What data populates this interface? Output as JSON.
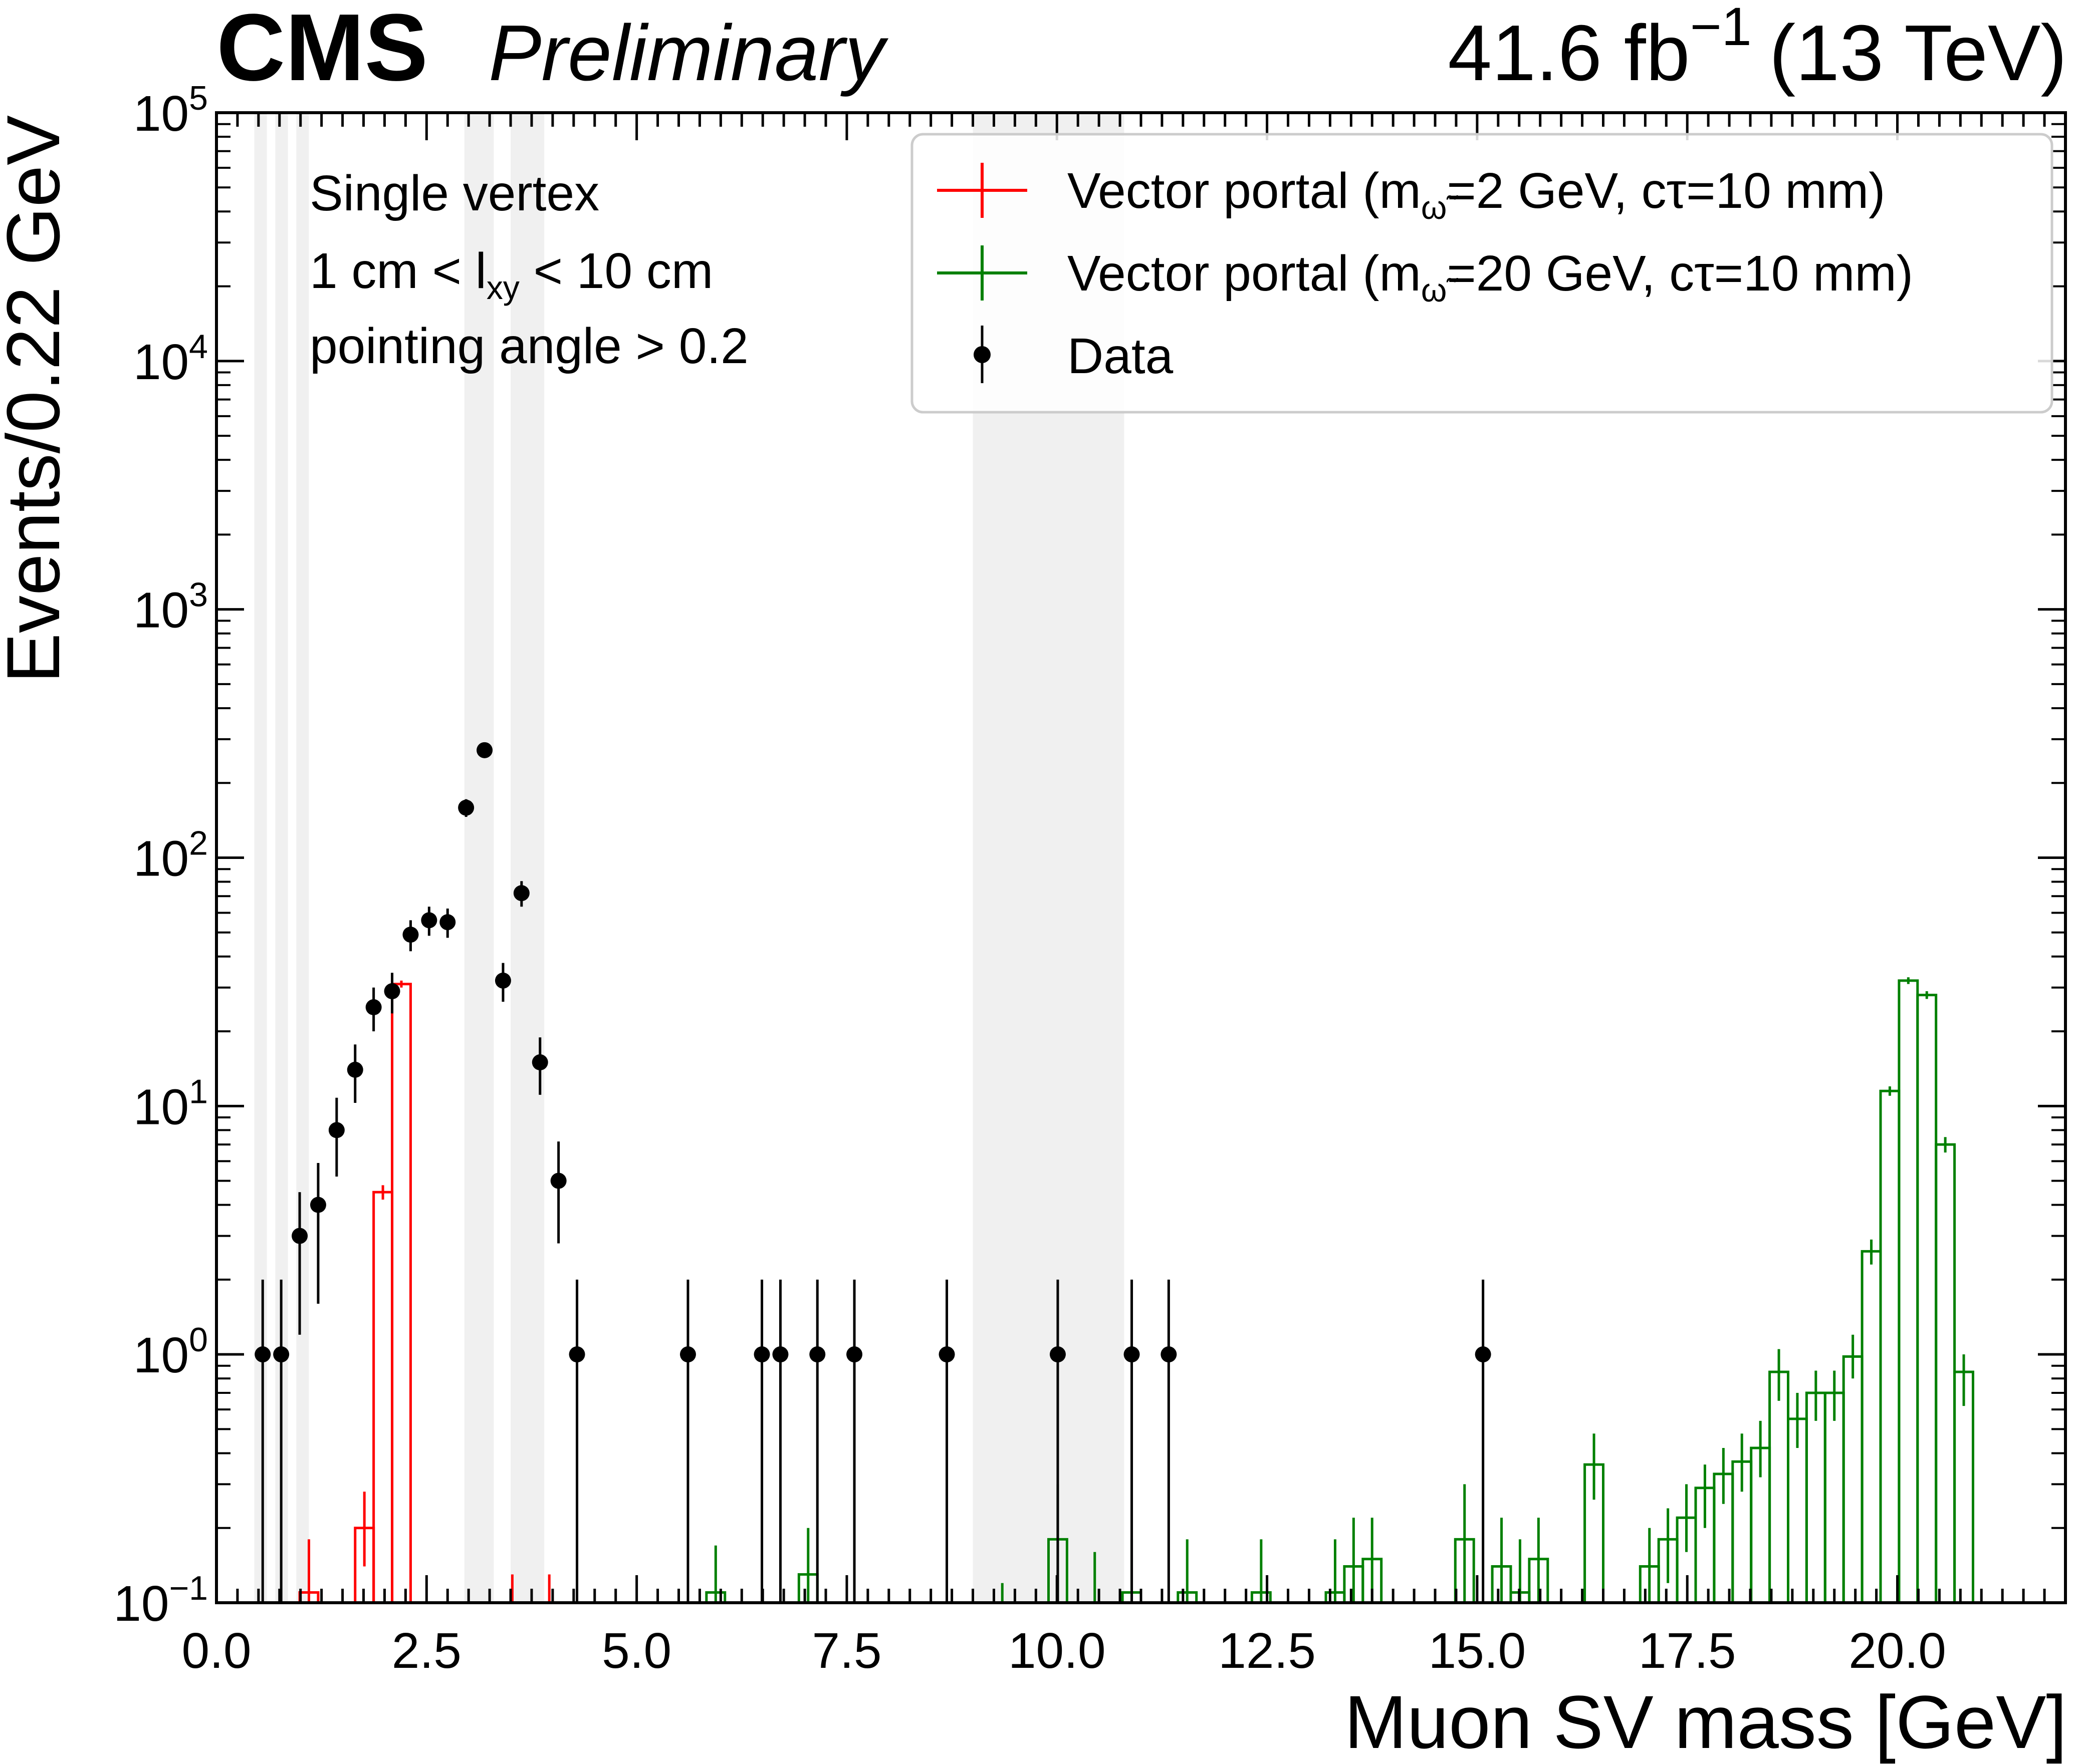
{
  "header": {
    "experiment": "CMS",
    "status": "Preliminary",
    "lumi_value": "41.6 fb",
    "lumi_exp": "−1",
    "energy": "(13 TeV)"
  },
  "chart_data": {
    "type": "histogram",
    "xlabel": "Muon SV mass [GeV]",
    "ylabel": "Events/0.22 GeV",
    "xlim": [
      0,
      22
    ],
    "ylim": [
      0.1,
      100000
    ],
    "yscale": "log",
    "x_ticks": [
      "0.0",
      "2.5",
      "5.0",
      "7.5",
      "10.0",
      "12.5",
      "15.0",
      "17.5",
      "20.0"
    ],
    "y_ticks": [
      {
        "base": "10",
        "exp": "−1",
        "value": 0.1
      },
      {
        "base": "10",
        "exp": "0",
        "value": 1
      },
      {
        "base": "10",
        "exp": "1",
        "value": 10
      },
      {
        "base": "10",
        "exp": "2",
        "value": 100
      },
      {
        "base": "10",
        "exp": "3",
        "value": 1000
      },
      {
        "base": "10",
        "exp": "4",
        "value": 10000
      },
      {
        "base": "10",
        "exp": "5",
        "value": 100000
      }
    ],
    "annotations": {
      "line1": "Single vertex",
      "line2_pre": "1 cm < l",
      "line2_sub": "xy",
      "line2_post": " < 10 cm",
      "line3": "pointing angle > 0.2"
    },
    "vetoed_mass_regions": [
      [
        0.45,
        0.6
      ],
      [
        0.7,
        0.85
      ],
      [
        0.95,
        1.1
      ],
      [
        2.95,
        3.3
      ],
      [
        3.5,
        3.9
      ],
      [
        9.0,
        10.8
      ]
    ],
    "legend": {
      "position": "top-right",
      "entries": [
        {
          "prefix": "Vector portal (m",
          "sub": "ω̃",
          "suffix": "=2 GeV, cτ=10 mm)",
          "color": "#ff0000"
        },
        {
          "prefix": "Vector portal (m",
          "sub": "ω̃",
          "suffix": "=20 GeV, cτ=10 mm)",
          "color": "#008000"
        },
        {
          "label": "Data",
          "color": "#000000"
        }
      ]
    },
    "series": [
      {
        "name": "Vector portal (m=2 GeV, ctau=10 mm)",
        "color": "#ff0000",
        "bin_width": 0.22,
        "bins": [
          {
            "x": 1.1,
            "y": 0.11,
            "err": [
              0.1,
              0.18
            ]
          },
          {
            "x": 1.76,
            "y": 0.2,
            "err": [
              0.14,
              0.28
            ]
          },
          {
            "x": 1.98,
            "y": 4.5,
            "err": [
              4.2,
              4.8
            ]
          },
          {
            "x": 2.2,
            "y": 31,
            "err": [
              30,
              32
            ]
          },
          {
            "x": 3.52,
            "y": 0.1,
            "err": [
              0.1,
              0.13
            ]
          },
          {
            "x": 3.96,
            "y": 0.1,
            "err": [
              0.1,
              0.13
            ]
          }
        ]
      },
      {
        "name": "Vector portal (m=20 GeV, ctau=10 mm)",
        "color": "#008000",
        "bin_width": 0.22,
        "bins": [
          {
            "x": 5.94,
            "y": 0.11,
            "err": [
              0.1,
              0.17
            ]
          },
          {
            "x": 7.04,
            "y": 0.13,
            "err": [
              0.1,
              0.2
            ]
          },
          {
            "x": 9.35,
            "y": 0.1,
            "err": [
              0.1,
              0.12
            ]
          },
          {
            "x": 10.01,
            "y": 0.18,
            "err": [
              0.1,
              0.3
            ]
          },
          {
            "x": 10.45,
            "y": 0.1,
            "err": [
              0.1,
              0.16
            ]
          },
          {
            "x": 10.89,
            "y": 0.11,
            "err": [
              0.1,
              0.18
            ]
          },
          {
            "x": 11.55,
            "y": 0.11,
            "err": [
              0.1,
              0.18
            ]
          },
          {
            "x": 12.43,
            "y": 0.11,
            "err": [
              0.1,
              0.18
            ]
          },
          {
            "x": 13.31,
            "y": 0.11,
            "err": [
              0.1,
              0.18
            ]
          },
          {
            "x": 13.53,
            "y": 0.14,
            "err": [
              0.1,
              0.22
            ]
          },
          {
            "x": 13.75,
            "y": 0.15,
            "err": [
              0.1,
              0.22
            ]
          },
          {
            "x": 14.85,
            "y": 0.18,
            "err": [
              0.1,
              0.3
            ]
          },
          {
            "x": 15.29,
            "y": 0.14,
            "err": [
              0.1,
              0.22
            ]
          },
          {
            "x": 15.51,
            "y": 0.11,
            "err": [
              0.1,
              0.18
            ]
          },
          {
            "x": 15.73,
            "y": 0.15,
            "err": [
              0.1,
              0.22
            ]
          },
          {
            "x": 16.39,
            "y": 0.36,
            "err": [
              0.26,
              0.48
            ]
          },
          {
            "x": 17.05,
            "y": 0.14,
            "err": [
              0.1,
              0.2
            ]
          },
          {
            "x": 17.27,
            "y": 0.18,
            "err": [
              0.12,
              0.24
            ]
          },
          {
            "x": 17.49,
            "y": 0.22,
            "err": [
              0.16,
              0.3
            ]
          },
          {
            "x": 17.71,
            "y": 0.29,
            "err": [
              0.2,
              0.36
            ]
          },
          {
            "x": 17.93,
            "y": 0.33,
            "err": [
              0.25,
              0.42
            ]
          },
          {
            "x": 18.15,
            "y": 0.37,
            "err": [
              0.28,
              0.48
            ]
          },
          {
            "x": 18.37,
            "y": 0.42,
            "err": [
              0.32,
              0.54
            ]
          },
          {
            "x": 18.59,
            "y": 0.85,
            "err": [
              0.65,
              1.05
            ]
          },
          {
            "x": 18.81,
            "y": 0.55,
            "err": [
              0.42,
              0.7
            ]
          },
          {
            "x": 19.03,
            "y": 0.7,
            "err": [
              0.54,
              0.86
            ]
          },
          {
            "x": 19.25,
            "y": 0.7,
            "err": [
              0.54,
              0.86
            ]
          },
          {
            "x": 19.47,
            "y": 0.98,
            "err": [
              0.8,
              1.2
            ]
          },
          {
            "x": 19.69,
            "y": 2.6,
            "err": [
              2.3,
              2.9
            ]
          },
          {
            "x": 19.91,
            "y": 11.5,
            "err": [
              11,
              12
            ]
          },
          {
            "x": 20.13,
            "y": 32,
            "err": [
              31,
              33
            ]
          },
          {
            "x": 20.35,
            "y": 28,
            "err": [
              27,
              29
            ]
          },
          {
            "x": 20.57,
            "y": 7,
            "err": [
              6.5,
              7.5
            ]
          },
          {
            "x": 20.79,
            "y": 0.85,
            "err": [
              0.62,
              1.0
            ]
          }
        ]
      },
      {
        "name": "Data",
        "color": "#000000",
        "points": [
          {
            "x": 0.55,
            "y": 1,
            "err": [
              0.1,
              2
            ]
          },
          {
            "x": 0.77,
            "y": 1,
            "err": [
              0.1,
              2
            ]
          },
          {
            "x": 0.99,
            "y": 3,
            "err": [
              1.2,
              4.5
            ]
          },
          {
            "x": 1.21,
            "y": 4,
            "err": [
              1.6,
              5.9
            ]
          },
          {
            "x": 1.43,
            "y": 8,
            "err": [
              5.2,
              10.8
            ]
          },
          {
            "x": 1.65,
            "y": 14,
            "err": [
              10.3,
              17.7
            ]
          },
          {
            "x": 1.87,
            "y": 25,
            "err": [
              20,
              30
            ]
          },
          {
            "x": 2.09,
            "y": 29,
            "err": [
              23.6,
              34.4
            ]
          },
          {
            "x": 2.31,
            "y": 49,
            "err": [
              42,
              56
            ]
          },
          {
            "x": 2.53,
            "y": 56,
            "err": [
              48.5,
              63.5
            ]
          },
          {
            "x": 2.75,
            "y": 55,
            "err": [
              47.6,
              62.4
            ]
          },
          {
            "x": 2.97,
            "y": 159,
            "err": [
              146,
              172
            ]
          },
          {
            "x": 3.19,
            "y": 271,
            "err": [
              255,
              287
            ]
          },
          {
            "x": 3.41,
            "y": 32,
            "err": [
              26.3,
              37.7
            ]
          },
          {
            "x": 3.63,
            "y": 72,
            "err": [
              63.5,
              80.5
            ]
          },
          {
            "x": 3.85,
            "y": 15,
            "err": [
              11.1,
              18.9
            ]
          },
          {
            "x": 4.07,
            "y": 5,
            "err": [
              2.8,
              7.2
            ]
          },
          {
            "x": 4.29,
            "y": 1,
            "err": [
              0.1,
              2
            ]
          },
          {
            "x": 5.61,
            "y": 1,
            "err": [
              0.1,
              2
            ]
          },
          {
            "x": 6.49,
            "y": 1,
            "err": [
              0.1,
              2
            ]
          },
          {
            "x": 6.71,
            "y": 1,
            "err": [
              0.1,
              2
            ]
          },
          {
            "x": 7.15,
            "y": 1,
            "err": [
              0.1,
              2
            ]
          },
          {
            "x": 7.59,
            "y": 1,
            "err": [
              0.1,
              2
            ]
          },
          {
            "x": 8.69,
            "y": 1,
            "err": [
              0.1,
              2
            ]
          },
          {
            "x": 10.01,
            "y": 1,
            "err": [
              0.1,
              2
            ]
          },
          {
            "x": 10.89,
            "y": 1,
            "err": [
              0.1,
              2
            ]
          },
          {
            "x": 11.33,
            "y": 1,
            "err": [
              0.1,
              2
            ]
          },
          {
            "x": 15.07,
            "y": 1,
            "err": [
              0.1,
              2
            ]
          }
        ]
      }
    ]
  }
}
